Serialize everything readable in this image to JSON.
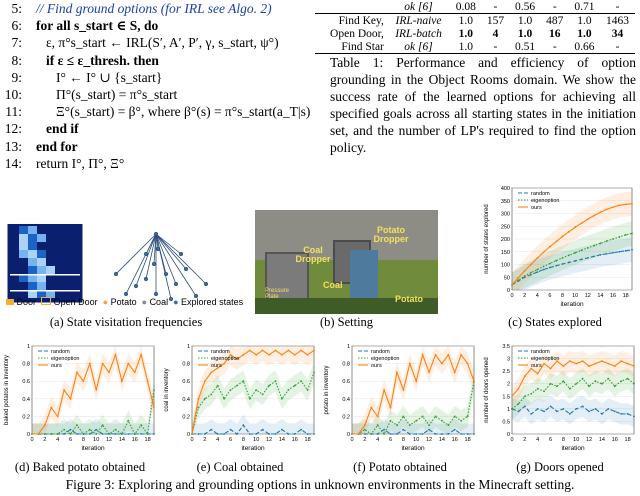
{
  "algorithm": {
    "lines": [
      {
        "no": "5:",
        "text": "// Find ground options (for IRL see Algo. 2)"
      },
      {
        "no": "6:",
        "text": "for all s_start ∈ S, do"
      },
      {
        "no": "7:",
        "text": "ε, π°s_start ← IRL(S′, A′, P′, γ, s_start, ψ°)"
      },
      {
        "no": "8:",
        "text": "if ε ≤ ε_thresh. then"
      },
      {
        "no": "9:",
        "text": "I° ← I° ∪ {s_start}"
      },
      {
        "no": "10:",
        "text": "Π°(s_start) = π°s_start"
      },
      {
        "no": "11:",
        "text": "Ξ°(s_start) = β°, where β°(s) = π°s_start(a_T|s)"
      },
      {
        "no": "12:",
        "text": "end if"
      },
      {
        "no": "13:",
        "text": "end for"
      },
      {
        "no": "14:",
        "text": "return I°, Π°, Ξ°"
      }
    ]
  },
  "table": {
    "rows": [
      {
        "task": "",
        "method": "ok [6]",
        "v1": "0.08",
        "v2": "-",
        "v3": "0.56",
        "v4": "-",
        "v5": "0.71",
        "v6": "-"
      },
      {
        "task": "Find Key,",
        "method": "IRL-naive",
        "v1": "1.0",
        "v2": "157",
        "v3": "1.0",
        "v4": "487",
        "v5": "1.0",
        "v6": "1463"
      },
      {
        "task": "Open Door,",
        "method": "IRL-batch",
        "v1": "1.0",
        "v2": "4",
        "v3": "1.0",
        "v4": "16",
        "v5": "1.0",
        "v6": "34"
      },
      {
        "task": "Find Star",
        "method": "ok [6]",
        "v1": "1.0",
        "v2": "-",
        "v3": "0.51",
        "v4": "-",
        "v5": "0.66",
        "v6": "-"
      }
    ],
    "caption": "Table 1: Performance and efficiency of option grounding in the Object Rooms domain. We show the success rate of the learned options for achieving all specified goals across all starting states in the initiation set, and the number of LP's required to find the option policy."
  },
  "panel_a": {
    "legend": [
      "Door",
      "Open Door",
      "Potato",
      "Coal",
      "Explored states"
    ],
    "caption": "(a) State visitation frequencies"
  },
  "panel_b": {
    "labels": [
      "Coal Dropper",
      "Potato Dropper",
      "Pressure Plate",
      "Coal",
      "Potato"
    ],
    "caption": "(b) Setting"
  },
  "legend_series": [
    "random",
    "eigenoption",
    "ours"
  ],
  "colors": {
    "random": "#1f77b4",
    "eigenoption": "#2ca02c",
    "ours": "#ff7f0e"
  },
  "chart_data": [
    {
      "type": "line",
      "caption": "(c) States explored",
      "xlabel": "iteration",
      "ylabel": "number of states explored",
      "xticks": [
        0,
        2,
        4,
        6,
        8,
        10,
        12,
        14,
        16,
        18
      ],
      "ylim": [
        0,
        400
      ],
      "yticks": [
        0,
        50,
        100,
        150,
        200,
        250,
        300,
        350,
        400
      ],
      "x": [
        0,
        1,
        2,
        3,
        4,
        5,
        6,
        7,
        8,
        9,
        10,
        11,
        12,
        13,
        14,
        15,
        16,
        17,
        18,
        19
      ],
      "series": [
        {
          "name": "random",
          "values": [
            20,
            35,
            50,
            60,
            70,
            80,
            88,
            95,
            102,
            108,
            114,
            120,
            126,
            132,
            138,
            142,
            146,
            150,
            154,
            158
          ]
        },
        {
          "name": "eigenoption",
          "values": [
            20,
            38,
            55,
            68,
            80,
            92,
            104,
            115,
            126,
            136,
            146,
            156,
            165,
            174,
            183,
            192,
            200,
            208,
            216,
            222
          ]
        },
        {
          "name": "ours",
          "values": [
            20,
            48,
            75,
            100,
            125,
            148,
            170,
            190,
            210,
            228,
            246,
            262,
            278,
            292,
            305,
            316,
            325,
            332,
            336,
            338
          ]
        }
      ]
    },
    {
      "type": "line",
      "caption": "(d) Baked potato obtained",
      "xlabel": "iteration",
      "ylabel": "baked potatos in inventory",
      "xticks": [
        0,
        2,
        4,
        6,
        8,
        10,
        12,
        14,
        16,
        18
      ],
      "ylim": [
        0,
        1.0
      ],
      "yticks": [
        0.0,
        0.2,
        0.4,
        0.6,
        0.8,
        1.0
      ],
      "x": [
        0,
        1,
        2,
        3,
        4,
        5,
        6,
        7,
        8,
        9,
        10,
        11,
        12,
        13,
        14,
        15,
        16,
        17,
        18,
        19
      ],
      "series": [
        {
          "name": "random",
          "values": [
            0,
            0,
            0,
            0,
            0,
            0,
            0.05,
            0,
            0,
            0,
            0.05,
            0,
            0,
            0,
            0,
            0,
            0,
            0,
            0,
            0
          ]
        },
        {
          "name": "eigenoption",
          "values": [
            0,
            0,
            0,
            0,
            0,
            0.05,
            0,
            0.1,
            0,
            0.05,
            0,
            0.1,
            0,
            0.05,
            0,
            0.15,
            0,
            0.1,
            0,
            0.5
          ]
        },
        {
          "name": "ours",
          "values": [
            0,
            0,
            0.1,
            0.3,
            0.2,
            0.5,
            0.4,
            0.7,
            0.6,
            0.8,
            0.5,
            0.8,
            0.7,
            0.9,
            0.6,
            0.8,
            0.7,
            0.9,
            0.6,
            0.3
          ]
        }
      ]
    },
    {
      "type": "line",
      "caption": "(e) Coal obtained",
      "xlabel": "iteration",
      "ylabel": "coal in inventory",
      "xticks": [
        0,
        2,
        4,
        6,
        8,
        10,
        12,
        14,
        16,
        18
      ],
      "ylim": [
        0,
        1.0
      ],
      "yticks": [
        0.0,
        0.2,
        0.4,
        0.6,
        0.8,
        1.0
      ],
      "x": [
        0,
        1,
        2,
        3,
        4,
        5,
        6,
        7,
        8,
        9,
        10,
        11,
        12,
        13,
        14,
        15,
        16,
        17,
        18,
        19
      ],
      "series": [
        {
          "name": "random",
          "values": [
            0,
            0,
            0,
            0.05,
            0,
            0,
            0.05,
            0,
            0.1,
            0,
            0,
            0.05,
            0,
            0,
            0.05,
            0,
            0,
            0.05,
            0,
            0
          ]
        },
        {
          "name": "eigenoption",
          "values": [
            0,
            0.3,
            0.4,
            0.45,
            0.55,
            0.4,
            0.5,
            0.55,
            0.6,
            0.4,
            0.5,
            0.45,
            0.55,
            0.6,
            0.4,
            0.5,
            0.55,
            0.6,
            0.5,
            0.7
          ]
        },
        {
          "name": "ours",
          "values": [
            0,
            0.4,
            0.6,
            0.7,
            0.75,
            0.8,
            0.9,
            0.85,
            0.9,
            0.95,
            0.9,
            0.95,
            0.9,
            0.95,
            0.9,
            0.95,
            0.9,
            0.95,
            0.9,
            0.95
          ]
        }
      ]
    },
    {
      "type": "line",
      "caption": "(f) Potato obtained",
      "xlabel": "iteration",
      "ylabel": "potato in inventory",
      "xticks": [
        0,
        2,
        4,
        6,
        8,
        10,
        12,
        14,
        16,
        18
      ],
      "ylim": [
        0,
        1.0
      ],
      "yticks": [
        0.0,
        0.2,
        0.4,
        0.6,
        0.8,
        1.0
      ],
      "x": [
        0,
        1,
        2,
        3,
        4,
        5,
        6,
        7,
        8,
        9,
        10,
        11,
        12,
        13,
        14,
        15,
        16,
        17,
        18,
        19
      ],
      "series": [
        {
          "name": "random",
          "values": [
            0,
            0,
            0,
            0,
            0,
            0.05,
            0,
            0,
            0.05,
            0,
            0,
            0,
            0.05,
            0,
            0,
            0,
            0.05,
            0,
            0,
            0
          ]
        },
        {
          "name": "eigenoption",
          "values": [
            0,
            0,
            0.05,
            0,
            0.1,
            0,
            0.15,
            0.1,
            0.2,
            0.1,
            0.15,
            0.2,
            0.1,
            0.2,
            0.15,
            0.1,
            0.2,
            0.15,
            0.2,
            0.6
          ]
        },
        {
          "name": "ours",
          "values": [
            0,
            0,
            0.1,
            0.3,
            0.2,
            0.5,
            0.3,
            0.7,
            0.5,
            0.8,
            0.6,
            0.9,
            0.7,
            0.9,
            0.8,
            0.9,
            0.7,
            0.9,
            0.8,
            0.6
          ]
        }
      ]
    },
    {
      "type": "line",
      "caption": "(g) Doors opened",
      "xlabel": "iteration",
      "ylabel": "number of doors opened",
      "xticks": [
        0,
        2,
        4,
        6,
        8,
        10,
        12,
        14,
        16,
        18
      ],
      "ylim": [
        0,
        3.5
      ],
      "yticks": [
        0.0,
        0.5,
        1.0,
        1.5,
        2.0,
        2.5,
        3.0,
        3.5
      ],
      "x": [
        0,
        1,
        2,
        3,
        4,
        5,
        6,
        7,
        8,
        9,
        10,
        11,
        12,
        13,
        14,
        15,
        16,
        17,
        18,
        19
      ],
      "series": [
        {
          "name": "random",
          "values": [
            1.0,
            0.9,
            1.1,
            0.8,
            1.0,
            0.9,
            1.1,
            0.9,
            1.0,
            0.8,
            1.0,
            1.1,
            0.9,
            1.0,
            0.8,
            1.0,
            0.9,
            0.8,
            0.8,
            0.7
          ]
        },
        {
          "name": "eigenoption",
          "values": [
            1.0,
            1.2,
            1.5,
            1.6,
            1.8,
            1.7,
            2.0,
            1.9,
            2.1,
            1.8,
            2.0,
            2.2,
            1.9,
            2.1,
            2.0,
            2.2,
            1.9,
            2.1,
            2.2,
            2.0
          ]
        },
        {
          "name": "ours",
          "values": [
            1.5,
            1.8,
            2.3,
            2.6,
            2.4,
            2.8,
            2.6,
            2.9,
            2.7,
            2.9,
            2.8,
            2.9,
            2.7,
            2.8,
            2.9,
            2.8,
            2.7,
            2.9,
            2.8,
            2.7
          ]
        }
      ]
    }
  ],
  "figure_caption": "Figure 3: Exploring and grounding options in unknown environments in the Minecraft setting."
}
